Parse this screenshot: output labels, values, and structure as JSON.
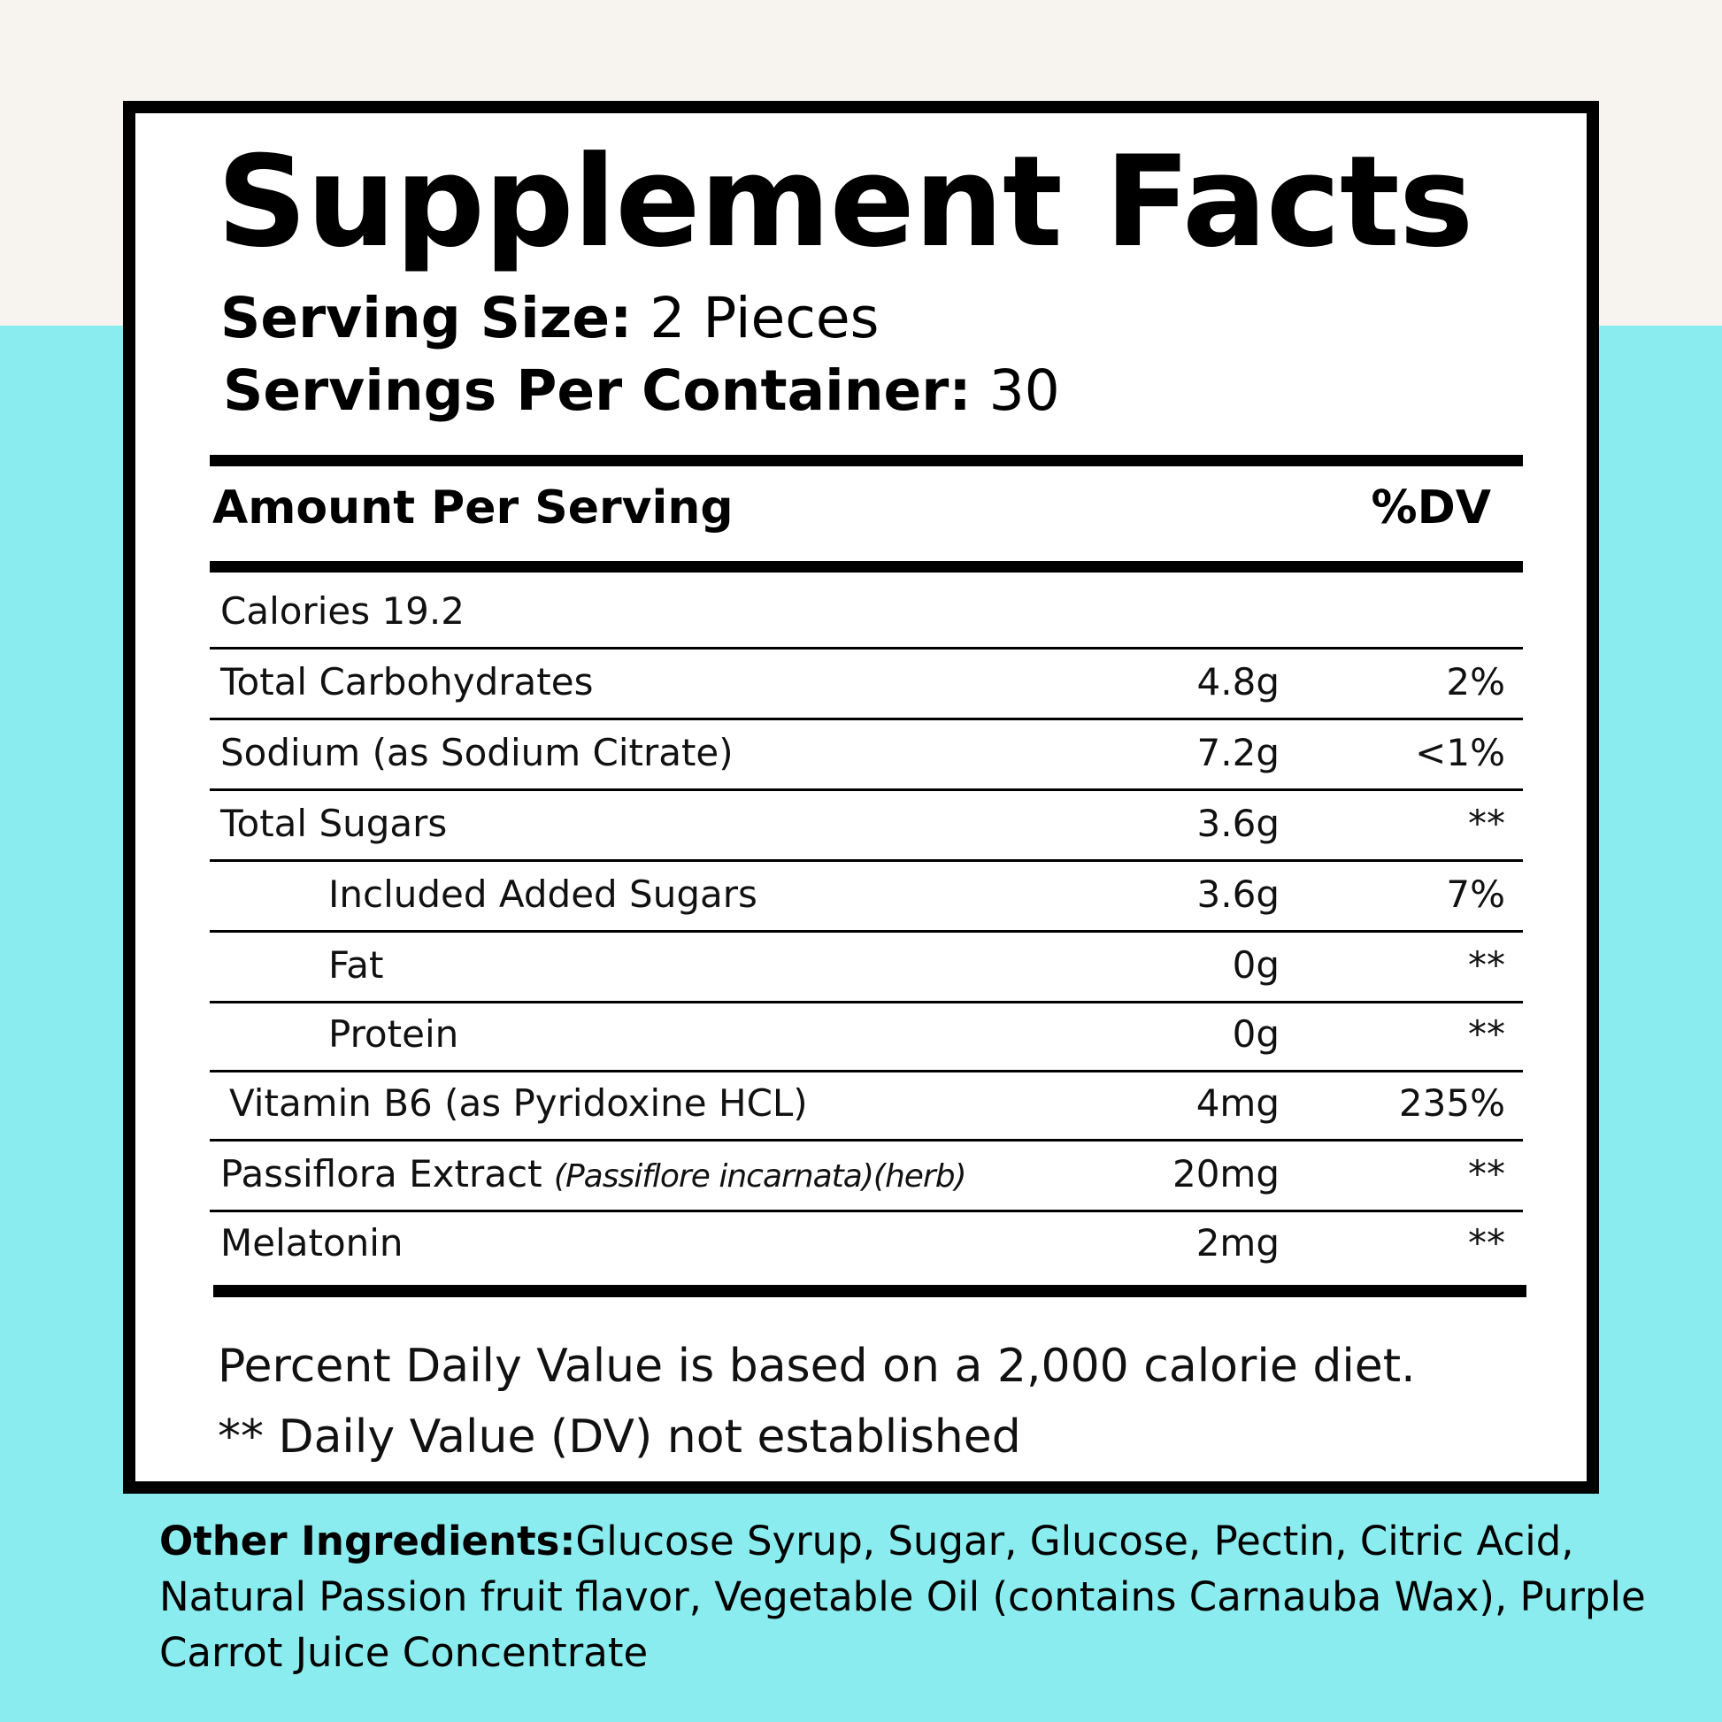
{
  "title": "Supplement Facts",
  "serving": {
    "size_label": "Serving Size:",
    "size_value": " 2 Pieces",
    "container_label": "Servings Per Container:",
    "container_value": " 30"
  },
  "header": {
    "amount_label": "Amount Per Serving",
    "dv_label": "%DV"
  },
  "rows": [
    {
      "name": "Calories 19.2",
      "amount": "",
      "dv": ""
    },
    {
      "name": "Total Carbohydrates",
      "amount": "4.8g",
      "dv": "2%"
    },
    {
      "name": "Sodium (as Sodium Citrate)",
      "amount": "7.2g",
      "dv": "<1%"
    },
    {
      "name": "Total Sugars",
      "amount": "3.6g",
      "dv": "**"
    },
    {
      "name": "Included Added Sugars",
      "amount": "3.6g",
      "dv": "7%"
    },
    {
      "name": "Fat",
      "amount": "0g",
      "dv": "**"
    },
    {
      "name": "Protein",
      "amount": "0g",
      "dv": "**"
    },
    {
      "name": "Vitamin B6 (as Pyridoxine HCL)",
      "amount": "4mg",
      "dv": "235%"
    },
    {
      "name": "Passiflora Extract ",
      "note": "(Passiflore incarnata)(herb)",
      "amount": "20mg",
      "dv": "**"
    },
    {
      "name": "Melatonin",
      "amount": "2mg",
      "dv": "**"
    }
  ],
  "footnotes": {
    "line1": "Percent Daily Value is based on a 2,000 calorie diet.",
    "line2": "** Daily Value (DV) not established"
  },
  "other_ingredients": {
    "label": "Other Ingredients:",
    "text": "Glucose Syrup,  Sugar, Glucose, Pectin, Citric Acid, Natural Passion fruit flavor, Vegetable Oil (contains Carnauba Wax), Purple Carrot Juice Concentrate"
  },
  "colors": {
    "background_top": "#f7f3ef",
    "background_main": "#8aecee",
    "label_bg": "#ffffff",
    "ink": "#000000"
  }
}
